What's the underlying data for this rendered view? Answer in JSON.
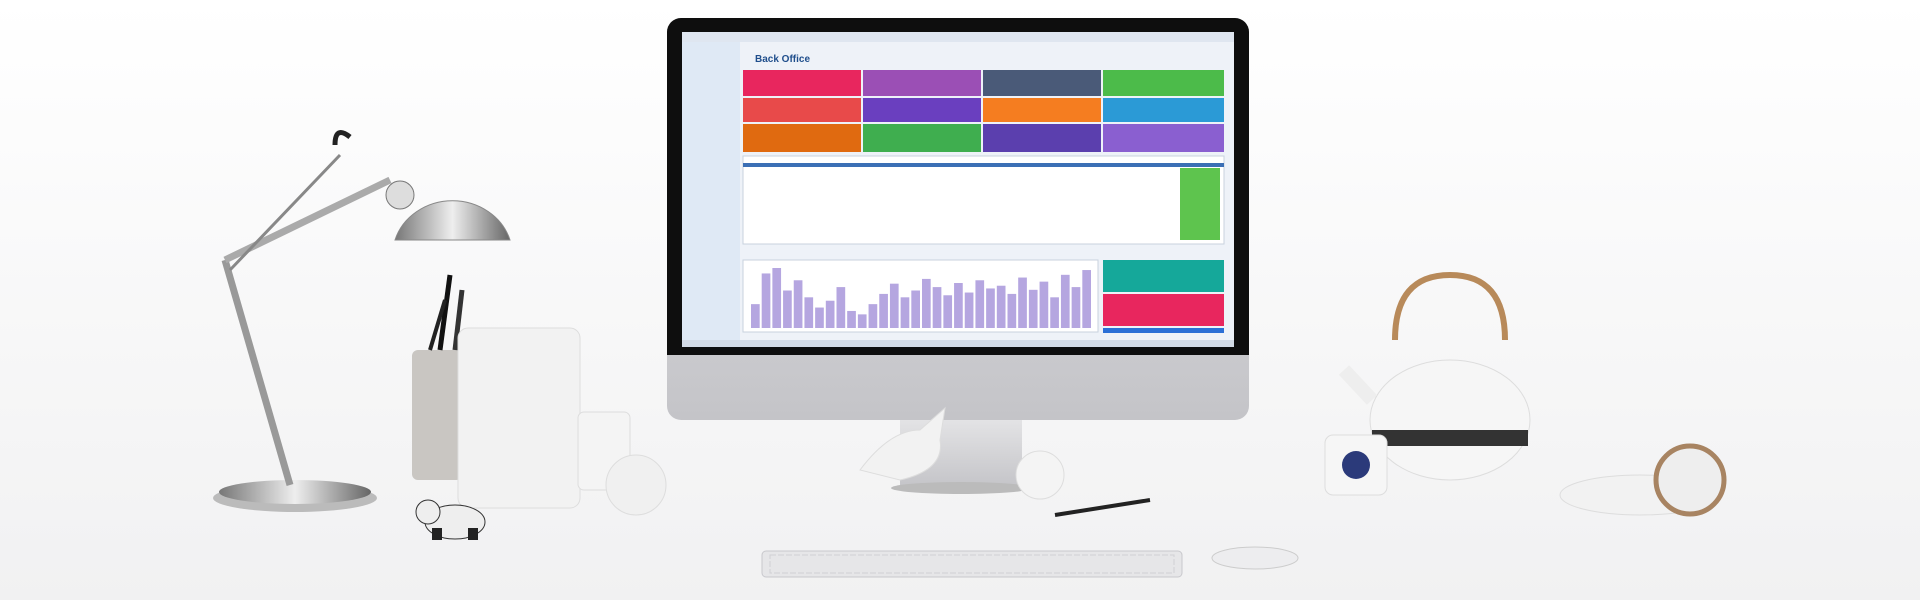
{
  "screen": {
    "title": "Back Office",
    "chart": {
      "values": [
        35,
        80,
        88,
        55,
        70,
        45,
        30,
        40,
        60,
        25,
        20,
        35,
        50,
        65,
        45,
        55,
        72,
        60,
        48,
        66,
        52,
        70,
        58,
        62,
        50,
        74,
        56,
        68,
        45,
        78,
        60,
        85
      ]
    }
  }
}
